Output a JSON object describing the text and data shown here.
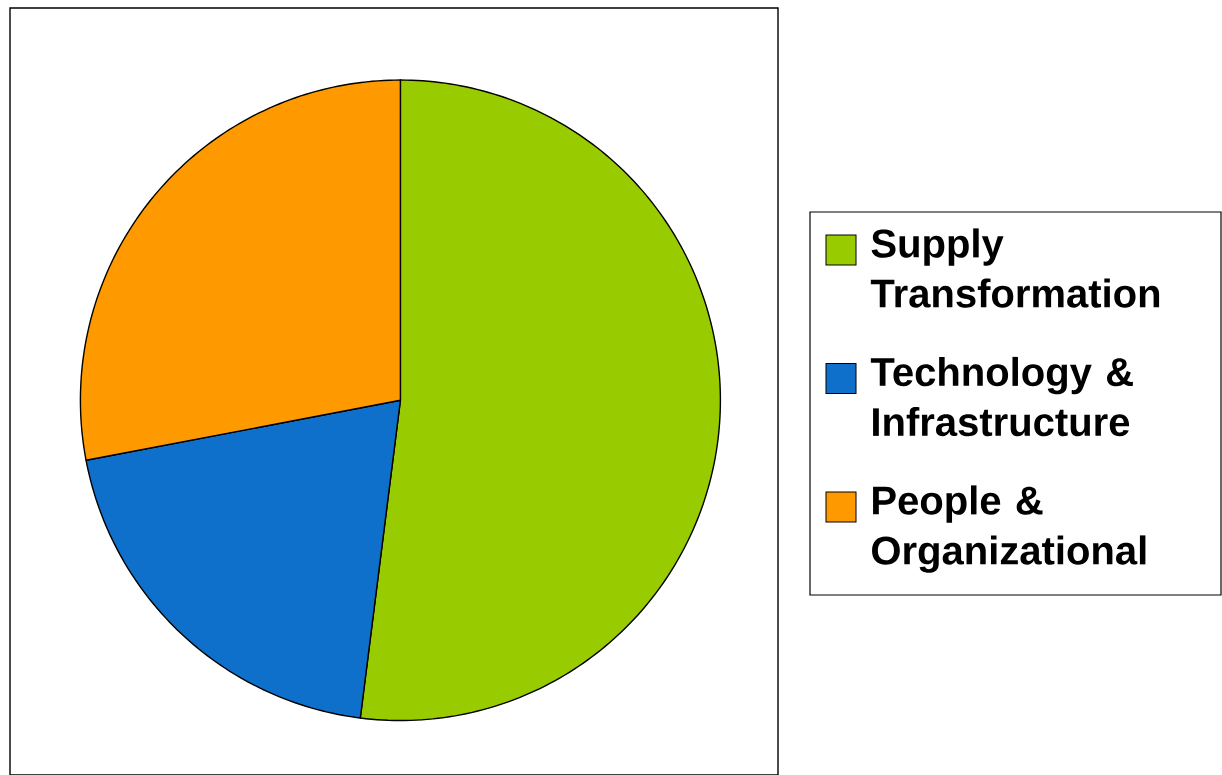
{
  "chart_data": {
    "type": "pie",
    "categories": [
      "Supply Transformation",
      "Technology & Infrastructure",
      "People & Organizational"
    ],
    "values": [
      52,
      20,
      28
    ],
    "colors": [
      "#99cc00",
      "#0f70cc",
      "#ff9900"
    ],
    "legend": "right"
  }
}
